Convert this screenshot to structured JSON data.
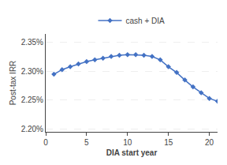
{
  "chart_data": {
    "type": "line",
    "x": [
      1,
      2,
      3,
      4,
      5,
      6,
      7,
      8,
      9,
      10,
      11,
      12,
      13,
      14,
      15,
      16,
      17,
      18,
      19,
      20,
      21
    ],
    "series": [
      {
        "name": "cash + DIA",
        "color": "#4472C4",
        "marker": "diamond",
        "values": [
          0.02295,
          0.02303,
          0.02308,
          0.02313,
          0.02317,
          0.0232,
          0.02323,
          0.02326,
          0.02328,
          0.02329,
          0.02329,
          0.02328,
          0.02326,
          0.0232,
          0.02308,
          0.02298,
          0.02285,
          0.02273,
          0.02263,
          0.02253,
          0.02248
        ]
      }
    ],
    "xlabel": "DIA start year",
    "ylabel": "Post-tax IRR",
    "xlim": [
      0,
      21
    ],
    "ylim": [
      0.02195,
      0.02365
    ],
    "xticks": [
      0,
      5,
      10,
      15,
      20
    ],
    "yticks": [
      {
        "value": 0.022,
        "label": "2.20%"
      },
      {
        "value": 0.0225,
        "label": "2.25%"
      },
      {
        "value": 0.023,
        "label": "2.30%"
      },
      {
        "value": 0.0235,
        "label": "2.35%"
      }
    ],
    "grid": "y",
    "legend": "top"
  }
}
